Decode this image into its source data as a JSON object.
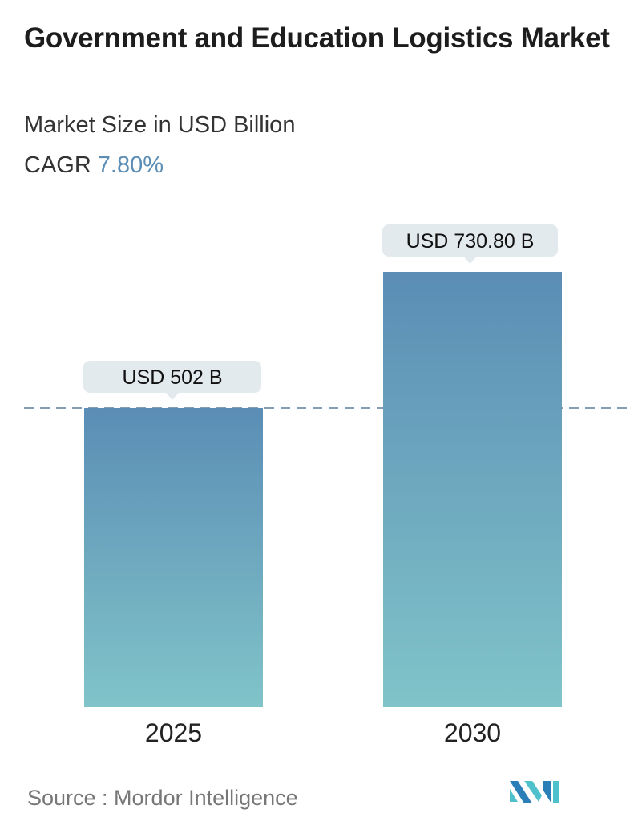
{
  "title": "Government and Education Logistics Market",
  "subtitle": "Market Size in USD Billion",
  "cagr_label": "CAGR",
  "cagr_value": "7.80%",
  "source": "Source :  Mordor Intelligence",
  "colors": {
    "bar_top": "#5b8db5",
    "bar_bottom": "#80c4c9",
    "accent": "#5b8db5",
    "label_bg": "#e3eaee"
  },
  "chart_data": {
    "type": "bar",
    "categories": [
      "2025",
      "2030"
    ],
    "values": [
      502,
      730.8
    ],
    "data_labels": [
      "USD 502 B",
      "USD 730.80 B"
    ],
    "reference_line": {
      "value": 502,
      "style": "dashed"
    },
    "grid": false
  }
}
